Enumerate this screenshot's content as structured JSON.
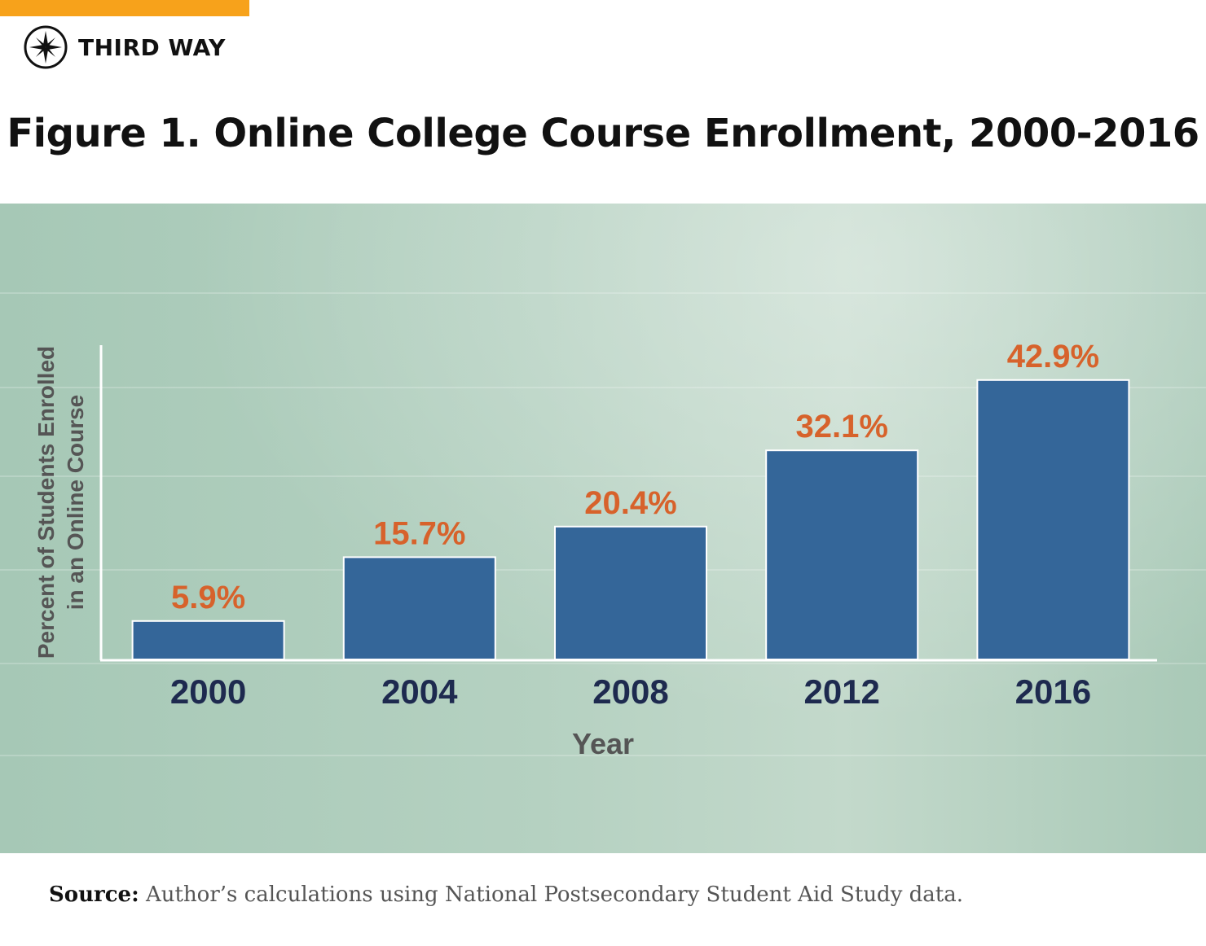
{
  "brand": {
    "name": "THIRD WAY",
    "accent_color": "#f7a21b",
    "logo_icon": "compass-star-icon"
  },
  "figure": {
    "title": "Figure 1. Online College Course Enrollment, 2000-2016"
  },
  "chart_data": {
    "type": "bar",
    "title": "Figure 1. Online College Course Enrollment, 2000-2016",
    "categories": [
      "2000",
      "2004",
      "2008",
      "2012",
      "2016"
    ],
    "values": [
      5.9,
      15.7,
      20.4,
      32.1,
      42.9
    ],
    "value_labels": [
      "5.9%",
      "15.7%",
      "20.4%",
      "32.1%",
      "42.9%"
    ],
    "xlabel": "Year",
    "ylabel_lines": [
      "Percent of Students Enrolled",
      "in an Online Course"
    ],
    "ylim": [
      0,
      50
    ],
    "grid": false,
    "legend": "none",
    "colors": {
      "bar": "#346699",
      "bar_stroke": "#ffffff",
      "value_label": "#d7622b",
      "tick_label": "#1e2a4f",
      "axis_title": "#555555",
      "axis": "#ffffff"
    }
  },
  "source": {
    "label": "Source:",
    "text": "Author’s calculations using National Postsecondary Student Aid Study data."
  }
}
